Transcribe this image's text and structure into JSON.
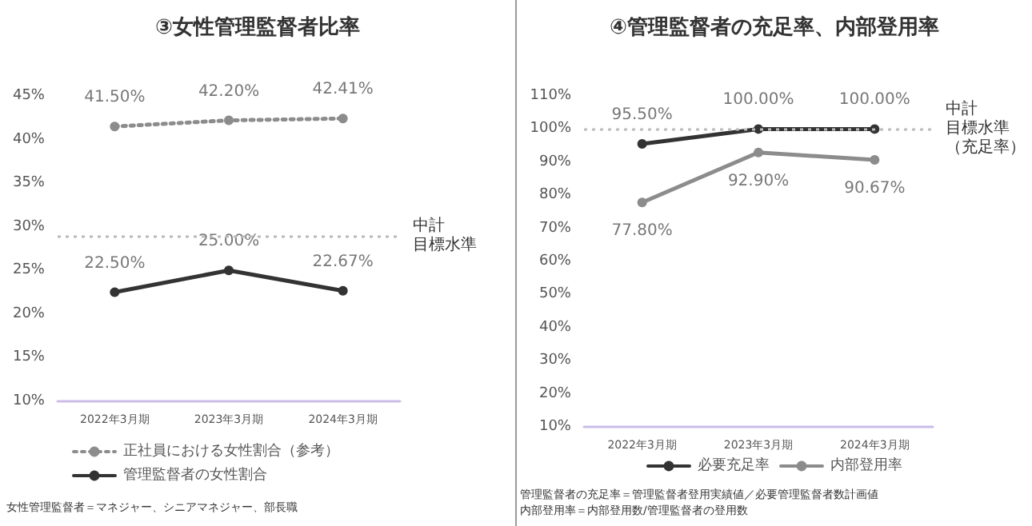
{
  "chart_data": [
    {
      "type": "line",
      "title": "③女性管理監督者比率",
      "categories": [
        "2022年3月期",
        "2023年3月期",
        "2024年3月期"
      ],
      "series": [
        {
          "name": "正社員における女性割合（参考）",
          "color": "#8c8c8c",
          "line_style": "dotted",
          "values": [
            41.5,
            42.2,
            42.41
          ],
          "value_labels": [
            "41.50%",
            "42.20%",
            "42.41%"
          ]
        },
        {
          "name": "管理監督者の女性割合",
          "color": "#333333",
          "line_style": "solid",
          "values": [
            22.5,
            25.0,
            22.67
          ],
          "value_labels": [
            "22.50%",
            "25.00%",
            "22.67%"
          ]
        }
      ],
      "ylim": [
        10,
        45
      ],
      "yticks": [
        {
          "value": 10,
          "label": "10%"
        },
        {
          "value": 15,
          "label": "15%"
        },
        {
          "value": 20,
          "label": "20%"
        },
        {
          "value": 25,
          "label": "25%"
        },
        {
          "value": 30,
          "label": "30%"
        },
        {
          "value": 35,
          "label": "35%"
        },
        {
          "value": 40,
          "label": "40%"
        },
        {
          "value": 45,
          "label": "45%"
        }
      ],
      "ref_lines": [
        {
          "axis": "y",
          "value": 29,
          "label": "中計目標水準",
          "color": "#bbbbbb",
          "line_style": "dotted"
        }
      ],
      "annotations": [
        "女性管理監督者＝マネジャー、シニアマネジャー、部長職"
      ],
      "marker": "circle",
      "grid": false,
      "legend": "bottom"
    },
    {
      "type": "line",
      "title": "④管理監督者の充足率、内部登用率",
      "categories": [
        "2022年3月期",
        "2023年3月期",
        "2024年3月期"
      ],
      "series": [
        {
          "name": "必要充足率",
          "color": "#333333",
          "values": [
            95.5,
            100.0,
            100.0
          ],
          "value_labels": [
            "95.50%",
            "100.00%",
            "100.00%"
          ]
        },
        {
          "name": "内部登用率",
          "color": "#8c8c8c",
          "values": [
            77.8,
            92.9,
            90.67
          ],
          "value_labels": [
            "77.80%",
            "92.90%",
            "90.67%"
          ]
        }
      ],
      "ylim": [
        10,
        110
      ],
      "yticks": [
        {
          "value": 10,
          "label": "10%"
        },
        {
          "value": 20,
          "label": "20%"
        },
        {
          "value": 30,
          "label": "30%"
        },
        {
          "value": 40,
          "label": "40%"
        },
        {
          "value": 50,
          "label": "50%"
        },
        {
          "value": 60,
          "label": "60%"
        },
        {
          "value": 70,
          "label": "70%"
        },
        {
          "value": 80,
          "label": "80%"
        },
        {
          "value": 90,
          "label": "90%"
        },
        {
          "value": 100,
          "label": "100%"
        },
        {
          "value": 110,
          "label": "110%"
        }
      ],
      "ref_lines": [
        {
          "axis": "y",
          "value": 100,
          "label": "中計目標水準（充足率）",
          "color": "#bbbbbb",
          "line_style": "dotted"
        }
      ],
      "annotations": [
        "管理監督者の充足率＝管理監督者登用実績値／必要管理監督者数計画値",
        "内部登用率＝内部登用数/管理監督者の登用数"
      ],
      "marker": "circle",
      "grid": false,
      "legend": "bottom"
    }
  ]
}
